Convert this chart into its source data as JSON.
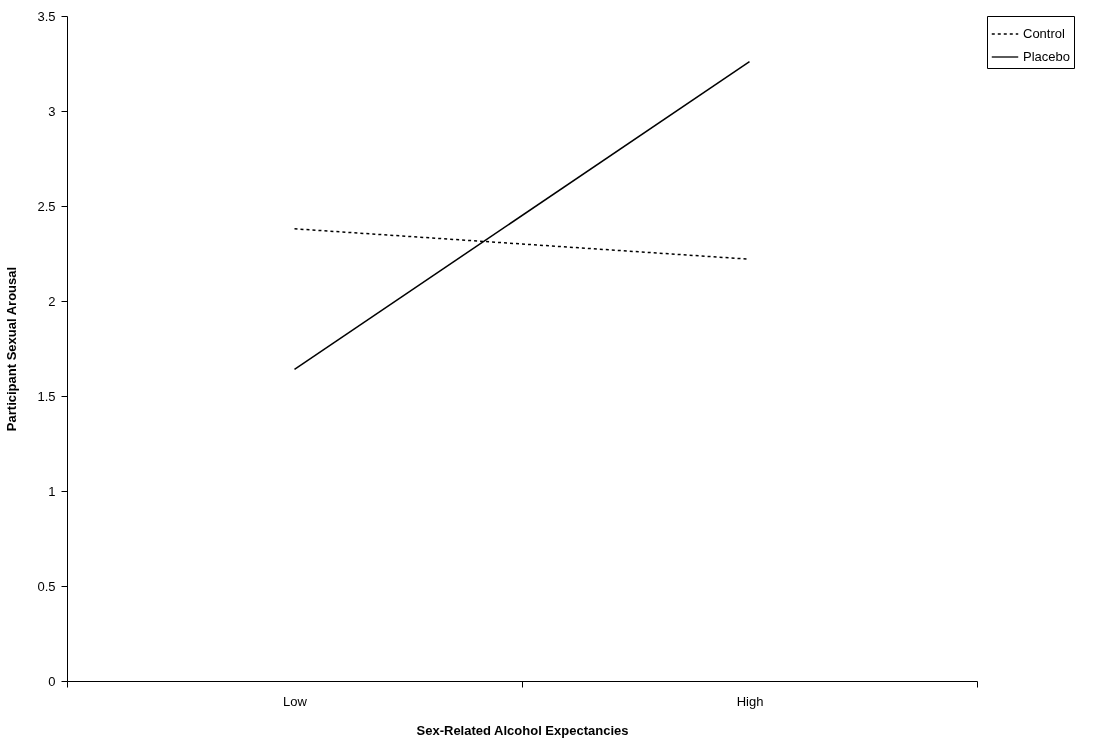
{
  "chart_data": {
    "type": "line",
    "xlabel": "Sex-Related Alcohol Expectancies",
    "ylabel": "Participant Sexual Arousal",
    "categories": [
      "Low",
      "High"
    ],
    "series": [
      {
        "name": "Control",
        "color": "#000000",
        "line_style": "dotted",
        "values": [
          2.38,
          2.22
        ]
      },
      {
        "name": "Placebo",
        "color": "#000000",
        "line_style": "solid",
        "values": [
          1.64,
          3.26
        ]
      }
    ],
    "ylim": [
      0,
      3.5
    ],
    "yticks": [
      0,
      0.5,
      1,
      1.5,
      2,
      2.5,
      3,
      3.5
    ],
    "grid": false,
    "legend": "right",
    "marker": "none"
  }
}
